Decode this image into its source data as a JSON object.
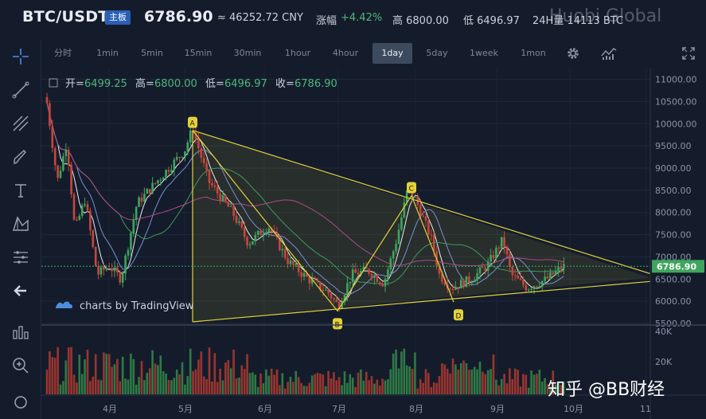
{
  "header": {
    "pair": "BTC/USDT",
    "main_badge": "主板",
    "price": "6786.90",
    "cny": "≈ 46252.72 CNY",
    "change_label": "涨幅",
    "change_value": "+4.42%",
    "high": "高 6800.00",
    "low": "低 6496.97",
    "volume24h": "24H量 14113 BTC",
    "watermark": "Huobi Global"
  },
  "toolbar": {
    "timeframes": [
      "分时",
      "1min",
      "5min",
      "15min",
      "30min",
      "1hour",
      "4hour",
      "1day",
      "5day",
      "1week",
      "1mon"
    ],
    "active": "1day",
    "icons": [
      "gear-icon",
      "indicator-icon",
      "fullscreen-icon"
    ]
  },
  "leftbar": {
    "icons": [
      "crosshair-icon",
      "trend-line-icon",
      "fib-icon",
      "brush-icon",
      "text-icon",
      "pattern-icon",
      "measure-icon",
      "back-arrow-icon",
      "zoom-in-icon"
    ]
  },
  "ohlc": {
    "open_label": "开",
    "open": "6499.25",
    "high_label": "高",
    "high": "6800.00",
    "low_label": "低",
    "low": "6496.97",
    "close_label": "收",
    "close": "6786.90"
  },
  "branding": {
    "tradingview": "charts by TradingView",
    "zhihu": "知乎 @BB财经"
  },
  "chart_data": {
    "type": "candlestick",
    "y_ticks": [
      11000,
      10500,
      10000,
      9500,
      9000,
      8500,
      8000,
      7500,
      7000,
      6500,
      6000,
      5500
    ],
    "ylim": [
      5500,
      11100
    ],
    "x_labels": [
      "4月",
      "5月",
      "6月",
      "7月",
      "8月",
      "9月",
      "10月",
      "11"
    ],
    "last_price": "6786.90",
    "volume_ticks": [
      "40K",
      "20K"
    ],
    "pattern_points": [
      "A",
      "B",
      "C",
      "D"
    ],
    "colors": {
      "up": "#3fa55d",
      "down": "#c8463c",
      "pattern": "#e3d13a",
      "bg": "#141c2b"
    }
  }
}
